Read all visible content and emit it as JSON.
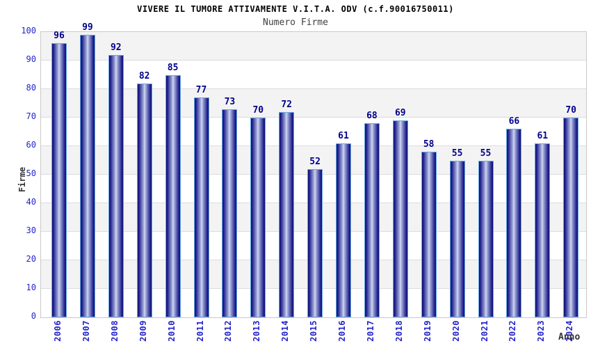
{
  "chart_data": {
    "type": "bar",
    "title": "VIVERE IL TUMORE ATTIVAMENTE V.I.T.A. ODV (c.f.90016750011)",
    "subtitle": "Numero Firme",
    "xlabel": "Anno",
    "ylabel": "Firme",
    "categories": [
      "2006",
      "2007",
      "2008",
      "2009",
      "2010",
      "2011",
      "2012",
      "2013",
      "2014",
      "2015",
      "2016",
      "2017",
      "2018",
      "2019",
      "2020",
      "2021",
      "2022",
      "2023",
      "2024"
    ],
    "values": [
      96,
      99,
      92,
      82,
      85,
      77,
      73,
      70,
      72,
      52,
      61,
      68,
      69,
      58,
      55,
      55,
      66,
      61,
      70
    ],
    "ylim": [
      0,
      100
    ],
    "ytick_step": 10,
    "grid": "horizontal-bands-alternating",
    "legend": "none",
    "value_labels_shown": true,
    "colors": {
      "bar_edge_dark": "#10106e",
      "bar_body": "#23238f",
      "bar_mid_light": "#aab2de",
      "bar_highlight": "#d6dbf4",
      "bar_border": "#66a9e6",
      "value_label": "#00008b",
      "tick_label": "#2323cc",
      "band_alt": "#f3f3f3",
      "band_main": "#ffffff",
      "gridline": "#dcdcdc",
      "plot_border": "#c9c9c9",
      "title": "#000000",
      "subtitle": "#404040",
      "axis_title": "#333333",
      "background": "#ffffff"
    }
  }
}
